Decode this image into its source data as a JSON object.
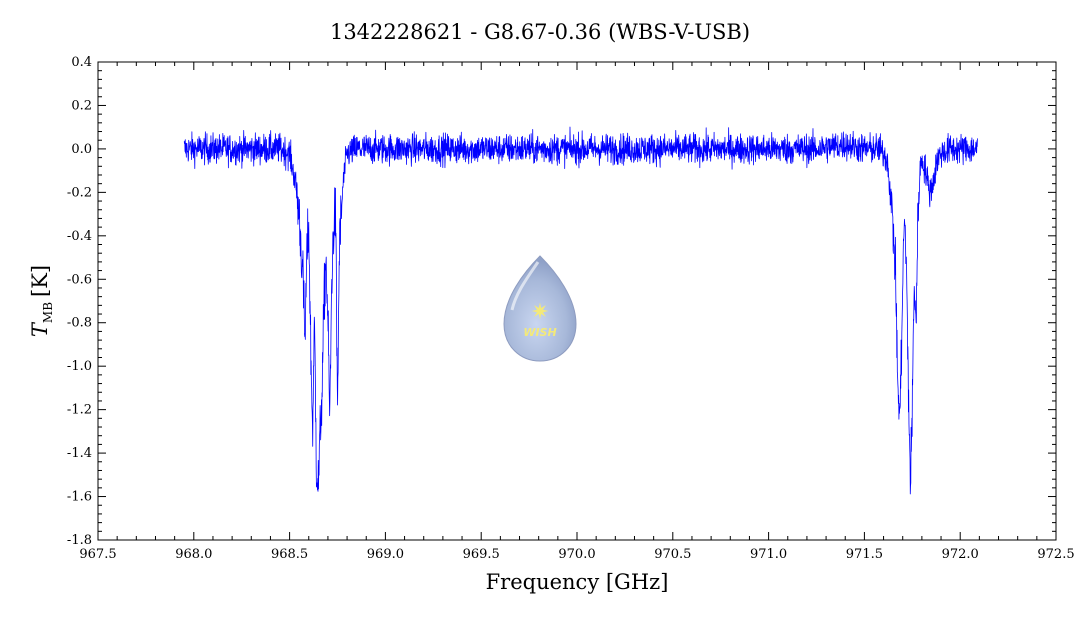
{
  "chart_data": {
    "type": "line",
    "title": "1342228621 - G8.67-0.36 (WBS-V-USB)",
    "xlabel": "Frequency [GHz]",
    "ylabel_main": "T",
    "ylabel_sub": "MB",
    "ylabel_unit": "[K]",
    "xlim": [
      967.5,
      972.5
    ],
    "ylim": [
      -1.8,
      0.4
    ],
    "x_ticks": [
      "967.5",
      "968.0",
      "968.5",
      "969.0",
      "969.5",
      "970.0",
      "970.5",
      "971.0",
      "971.5",
      "972.0",
      "972.5"
    ],
    "y_ticks": [
      "0.4",
      "0.2",
      "0.0",
      "-0.2",
      "-0.4",
      "-0.6",
      "-0.8",
      "-1.0",
      "-1.2",
      "-1.4",
      "-1.6",
      "-1.8"
    ],
    "grid": false,
    "series": [
      {
        "color": "#0000ff",
        "x": [
          967.95,
          968.05,
          968.15,
          968.25,
          968.35,
          968.45,
          968.5,
          968.53,
          968.55,
          968.57,
          968.58,
          968.59,
          968.6,
          968.61,
          968.62,
          968.63,
          968.64,
          968.65,
          968.66,
          968.67,
          968.68,
          968.69,
          968.7,
          968.71,
          968.72,
          968.73,
          968.74,
          968.75,
          968.76,
          968.77,
          968.78,
          968.8,
          968.85,
          969.0,
          969.25,
          969.5,
          969.75,
          970.0,
          970.25,
          970.5,
          970.75,
          971.0,
          971.25,
          971.4,
          971.5,
          971.58,
          971.62,
          971.64,
          971.66,
          971.67,
          971.68,
          971.69,
          971.7,
          971.71,
          971.72,
          971.73,
          971.74,
          971.75,
          971.76,
          971.77,
          971.78,
          971.79,
          971.8,
          971.82,
          971.84,
          971.86,
          971.88,
          971.9,
          971.95,
          972.0,
          972.09
        ],
        "y": [
          0.0,
          0.0,
          0.0,
          0.0,
          0.0,
          0.0,
          -0.02,
          -0.15,
          -0.3,
          -0.6,
          -0.9,
          -0.5,
          -0.35,
          -0.9,
          -1.3,
          -0.8,
          -1.45,
          -1.55,
          -1.3,
          -1.1,
          -0.7,
          -0.5,
          -0.8,
          -1.25,
          -0.6,
          -0.35,
          -0.3,
          -1.2,
          -0.45,
          -0.3,
          -0.15,
          -0.02,
          0.0,
          0.0,
          0.0,
          0.0,
          0.0,
          0.0,
          0.0,
          0.0,
          0.0,
          0.0,
          0.0,
          0.02,
          0.0,
          0.0,
          -0.05,
          -0.25,
          -0.5,
          -0.9,
          -1.25,
          -1.1,
          -0.6,
          -0.3,
          -0.6,
          -1.1,
          -1.55,
          -1.2,
          -0.6,
          -0.8,
          -0.3,
          -0.1,
          -0.05,
          -0.1,
          -0.2,
          -0.15,
          -0.05,
          -0.02,
          0.0,
          0.0,
          0.0
        ]
      }
    ]
  },
  "watermark": {
    "label": "WISH",
    "body_color": "#a7b8d9",
    "star_color": "#f3e97a"
  }
}
